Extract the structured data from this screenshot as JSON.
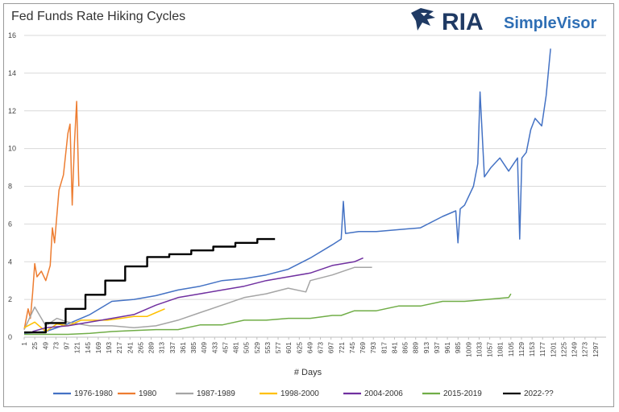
{
  "brand": {
    "name": "RIA",
    "product": "SimpleVisor",
    "icon": "eagle-logo-icon"
  },
  "chart_data": {
    "type": "line",
    "title": "Fed Funds Rate Hiking Cycles",
    "xlabel": "# Days",
    "ylabel": "",
    "xlim": [
      1,
      1321
    ],
    "ylim": [
      0,
      16
    ],
    "yticks": [
      0,
      2,
      4,
      6,
      8,
      10,
      12,
      14,
      16
    ],
    "xticks": [
      1,
      25,
      49,
      73,
      97,
      121,
      145,
      169,
      193,
      217,
      241,
      265,
      289,
      313,
      337,
      361,
      385,
      409,
      433,
      457,
      481,
      505,
      529,
      553,
      577,
      601,
      625,
      649,
      673,
      697,
      721,
      745,
      769,
      793,
      817,
      841,
      865,
      889,
      913,
      937,
      961,
      985,
      1009,
      1033,
      1057,
      1081,
      1105,
      1129,
      1153,
      1177,
      1201,
      1225,
      1249,
      1273,
      1297
    ],
    "grid": "horizontal",
    "legend_position": "bottom",
    "series": [
      {
        "name": "1976-1980",
        "color": "#4472c4",
        "x": [
          1,
          50,
          100,
          150,
          200,
          250,
          300,
          350,
          400,
          450,
          500,
          550,
          600,
          650,
          700,
          720,
          725,
          730,
          760,
          800,
          850,
          900,
          950,
          980,
          985,
          990,
          1000,
          1020,
          1030,
          1035,
          1045,
          1060,
          1080,
          1100,
          1120,
          1125,
          1130,
          1140,
          1150,
          1160,
          1175,
          1185,
          1195
        ],
        "y": [
          0.2,
          0.3,
          0.7,
          1.2,
          1.9,
          2.0,
          2.2,
          2.5,
          2.7,
          3.0,
          3.1,
          3.3,
          3.6,
          4.2,
          4.9,
          5.2,
          7.2,
          5.5,
          5.6,
          5.6,
          5.7,
          5.8,
          6.4,
          6.7,
          5.0,
          6.8,
          7.0,
          8.0,
          9.2,
          13.0,
          8.5,
          9.0,
          9.5,
          8.8,
          9.5,
          5.2,
          9.5,
          9.8,
          11.0,
          11.6,
          11.2,
          12.8,
          15.3
        ]
      },
      {
        "name": "1980",
        "color": "#ed7d31",
        "x": [
          1,
          5,
          10,
          15,
          20,
          25,
          30,
          40,
          50,
          60,
          65,
          70,
          80,
          90,
          100,
          105,
          110,
          115,
          120,
          125
        ],
        "y": [
          0.4,
          0.9,
          1.5,
          1.0,
          2.3,
          3.9,
          3.2,
          3.5,
          3.0,
          3.8,
          5.8,
          5.0,
          7.8,
          8.6,
          10.8,
          11.3,
          7.0,
          10.3,
          12.5,
          8.0
        ]
      },
      {
        "name": "1987-1989",
        "color": "#a5a5a5",
        "x": [
          1,
          25,
          50,
          75,
          100,
          150,
          200,
          250,
          300,
          350,
          400,
          450,
          500,
          550,
          600,
          640,
          650,
          700,
          750,
          790
        ],
        "y": [
          0.4,
          1.6,
          0.6,
          1.0,
          0.8,
          0.6,
          0.6,
          0.5,
          0.6,
          0.9,
          1.3,
          1.7,
          2.1,
          2.3,
          2.6,
          2.4,
          3.0,
          3.3,
          3.7,
          3.7
        ]
      },
      {
        "name": "1998-2000",
        "color": "#ffc000",
        "x": [
          1,
          25,
          50,
          75,
          100,
          130,
          160,
          190,
          220,
          250,
          280,
          300,
          320
        ],
        "y": [
          0.5,
          0.8,
          0.3,
          0.7,
          0.6,
          0.9,
          0.9,
          0.9,
          1.0,
          1.1,
          1.1,
          1.3,
          1.5
        ]
      },
      {
        "name": "2004-2006",
        "color": "#7030a0",
        "x": [
          20,
          50,
          100,
          150,
          200,
          250,
          300,
          350,
          400,
          450,
          500,
          550,
          600,
          650,
          700,
          750,
          770
        ],
        "y": [
          0.3,
          0.5,
          0.6,
          0.8,
          1.0,
          1.2,
          1.7,
          2.1,
          2.3,
          2.5,
          2.7,
          3.0,
          3.2,
          3.4,
          3.8,
          4.0,
          4.2
        ]
      },
      {
        "name": "2015-2019",
        "color": "#70ad47",
        "x": [
          1,
          100,
          150,
          200,
          250,
          300,
          350,
          400,
          450,
          500,
          550,
          600,
          650,
          700,
          720,
          750,
          800,
          850,
          900,
          950,
          1000,
          1050,
          1100,
          1105
        ],
        "y": [
          0.15,
          0.15,
          0.2,
          0.3,
          0.35,
          0.4,
          0.4,
          0.65,
          0.65,
          0.9,
          0.9,
          1.0,
          1.0,
          1.15,
          1.15,
          1.4,
          1.4,
          1.65,
          1.65,
          1.9,
          1.9,
          2.0,
          2.1,
          2.3
        ]
      },
      {
        "name": "2022-??",
        "color": "#000000",
        "step": true,
        "x": [
          1,
          50,
          95,
          140,
          185,
          230,
          280,
          330,
          380,
          430,
          480,
          530,
          570
        ],
        "y": [
          0.25,
          0.75,
          1.5,
          2.25,
          3.0,
          3.75,
          4.25,
          4.4,
          4.6,
          4.8,
          5.0,
          5.2,
          5.2
        ]
      }
    ]
  }
}
